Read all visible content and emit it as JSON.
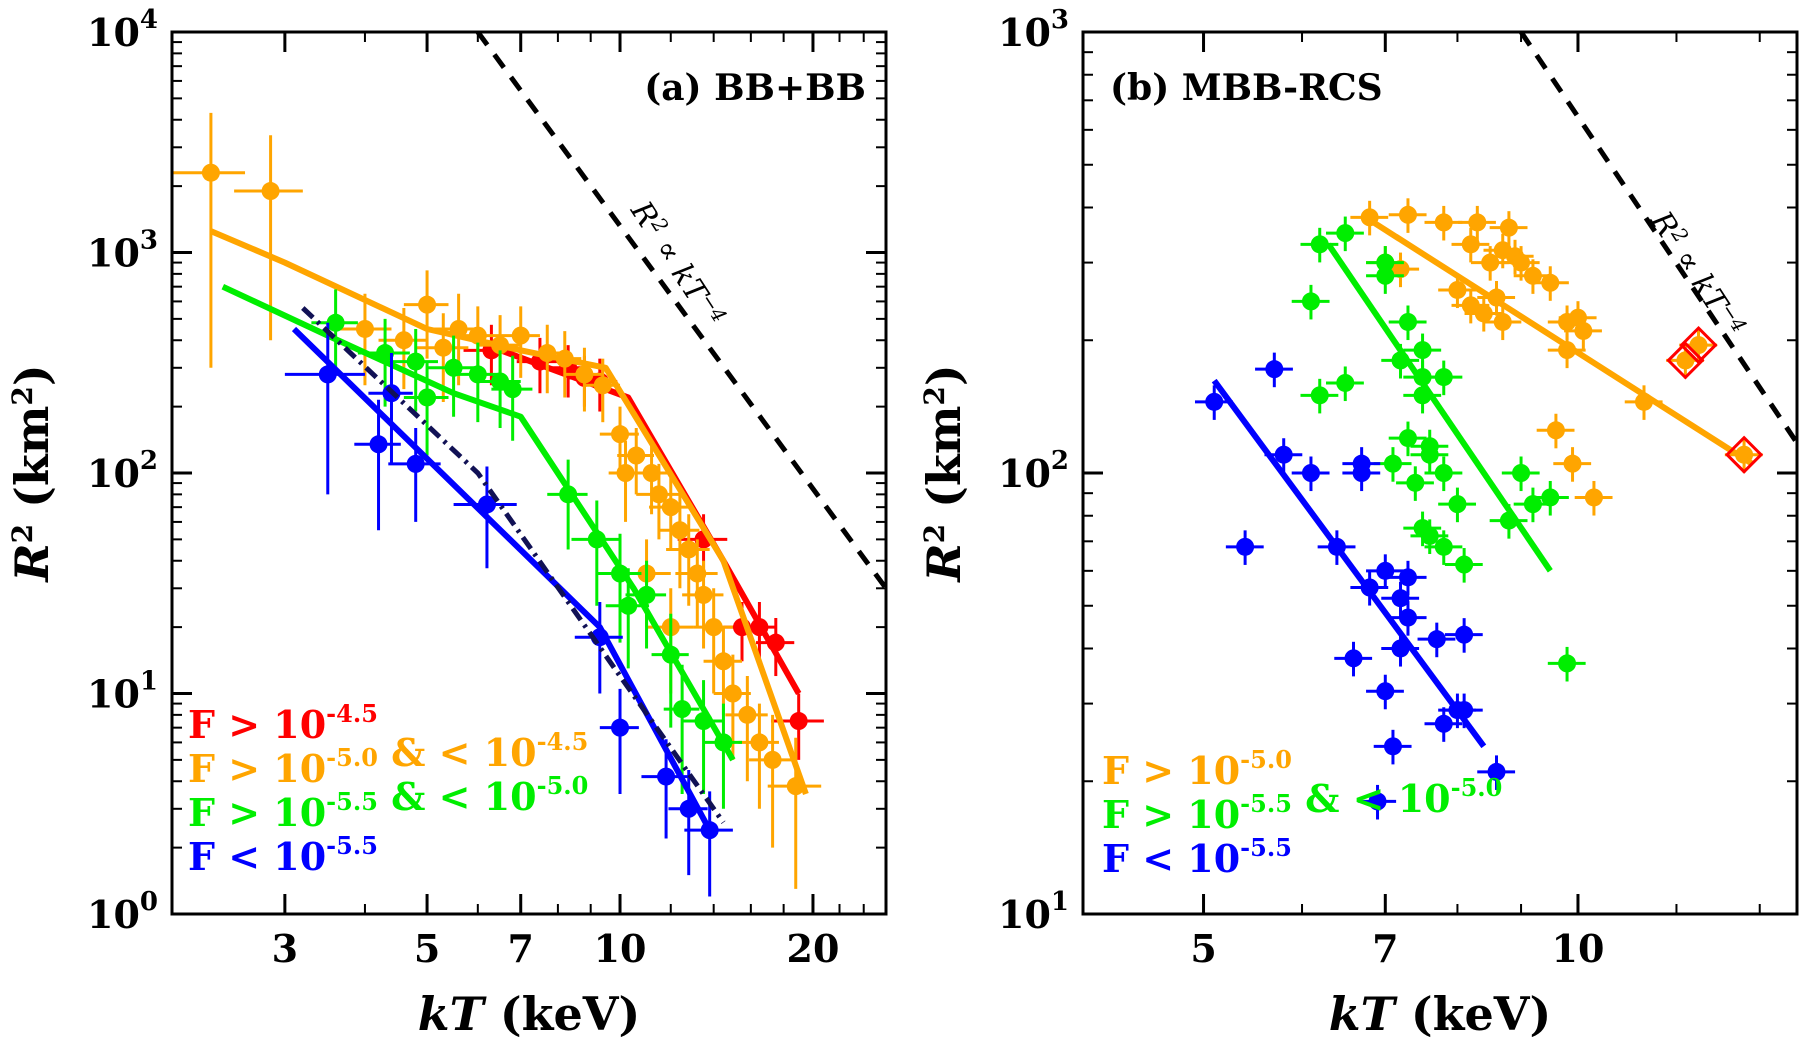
{
  "chart_data": [
    {
      "type": "scatter",
      "panel_label": "(a) BB+BB",
      "xlabel": "kT (keV)",
      "ylabel": "R² (km²)",
      "xscale": "log",
      "yscale": "log",
      "xlim": [
        2.0,
        26.0
      ],
      "ylim": [
        1.0,
        10000
      ],
      "xticks": [
        {
          "value": 3,
          "label": "3"
        },
        {
          "value": 5,
          "label": "5"
        },
        {
          "value": 7,
          "label": "7"
        },
        {
          "value": 10,
          "label": "10"
        },
        {
          "value": 20,
          "label": "20"
        }
      ],
      "yticks": [
        {
          "value": 1,
          "base": "10",
          "exp": "0"
        },
        {
          "value": 10,
          "base": "10",
          "exp": "1"
        },
        {
          "value": 100,
          "base": "10",
          "exp": "2"
        },
        {
          "value": 1000,
          "base": "10",
          "exp": "3"
        },
        {
          "value": 10000,
          "base": "10",
          "exp": "4"
        }
      ],
      "annotation": {
        "text": "R² ∝ kT⁻⁴",
        "line": [
          [
            6,
            10000
          ],
          [
            26,
            30
          ]
        ]
      },
      "legend_position": "bottom-left",
      "legend": [
        {
          "color": "#ff0000",
          "parts": [
            {
              "t": "F > 10",
              "sup": "-4.5"
            }
          ]
        },
        {
          "color": "#ffa500",
          "parts": [
            {
              "t": "F > 10",
              "sup": "-5.0"
            },
            {
              "t": " & < 10",
              "sup": "-4.5"
            }
          ]
        },
        {
          "color": "#00ee00",
          "parts": [
            {
              "t": "F > 10",
              "sup": "-5.5"
            },
            {
              "t": " & < 10",
              "sup": "-5.0"
            }
          ]
        },
        {
          "color": "#0000ff",
          "parts": [
            {
              "t": "F < 10",
              "sup": "-5.5"
            }
          ]
        }
      ],
      "series": [
        {
          "color": "#ff0000",
          "points": [
            [
              6.3,
              360,
              0.6,
              110
            ],
            [
              7.5,
              320,
              0.6,
              90
            ],
            [
              8.3,
              300,
              0.6,
              80
            ],
            [
              8.8,
              270,
              0.5,
              70
            ],
            [
              9.3,
              260,
              0.6,
              70
            ],
            [
              13.5,
              50,
              1.2,
              15
            ],
            [
              15.5,
              20,
              1.0,
              6
            ],
            [
              16.5,
              20,
              1.0,
              6
            ],
            [
              17.5,
              17,
              1.2,
              5
            ],
            [
              19.0,
              7.5,
              1.8,
              2.5
            ]
          ],
          "fit": [
            [
              6.2,
              380
            ],
            [
              10.3,
              220
            ],
            [
              14.5,
              40
            ],
            [
              19.0,
              10
            ]
          ]
        },
        {
          "color": "#ffa500",
          "points": [
            [
              2.3,
              2300,
              0.3,
              2000
            ],
            [
              2.85,
              1900,
              0.35,
              1500
            ],
            [
              4.0,
              450,
              0.4,
              200
            ],
            [
              4.6,
              400,
              0.4,
              160
            ],
            [
              5.0,
              580,
              0.4,
              250
            ],
            [
              5.3,
              370,
              0.5,
              160
            ],
            [
              5.6,
              450,
              0.5,
              200
            ],
            [
              6.0,
              420,
              0.5,
              150
            ],
            [
              6.5,
              380,
              0.5,
              140
            ],
            [
              7.0,
              420,
              0.5,
              150
            ],
            [
              7.7,
              350,
              0.5,
              120
            ],
            [
              8.2,
              330,
              0.5,
              110
            ],
            [
              8.8,
              280,
              0.6,
              90
            ],
            [
              9.4,
              250,
              0.6,
              80
            ],
            [
              10.0,
              150,
              0.7,
              50
            ],
            [
              10.6,
              120,
              0.7,
              40
            ],
            [
              11.2,
              100,
              0.8,
              35
            ],
            [
              10.2,
              100,
              0.6,
              40
            ],
            [
              11.5,
              80,
              0.9,
              30
            ],
            [
              12.0,
              70,
              0.9,
              25
            ],
            [
              12.4,
              55,
              0.9,
              25
            ],
            [
              12.8,
              45,
              1.0,
              20
            ],
            [
              13.2,
              35,
              1.0,
              15
            ],
            [
              11.0,
              35,
              1.0,
              15
            ],
            [
              12.0,
              20,
              1.0,
              10
            ],
            [
              13.5,
              28,
              1.0,
              12
            ],
            [
              14.0,
              20,
              1.0,
              10
            ],
            [
              14.5,
              14,
              1.0,
              6
            ],
            [
              15.0,
              10,
              1.0,
              5
            ],
            [
              15.8,
              8,
              1.2,
              4
            ],
            [
              16.5,
              6,
              1.2,
              3
            ],
            [
              17.3,
              5,
              1.4,
              3
            ],
            [
              18.8,
              3.8,
              1.8,
              2.5
            ]
          ],
          "fit": [
            [
              2.3,
              1250
            ],
            [
              3.0,
              900
            ],
            [
              5.0,
              450
            ],
            [
              7.0,
              360
            ],
            [
              9.5,
              300
            ],
            [
              14.5,
              40
            ],
            [
              19.5,
              3.5
            ]
          ]
        },
        {
          "color": "#00ee00",
          "points": [
            [
              3.6,
              480,
              0.3,
              200
            ],
            [
              4.3,
              350,
              0.4,
              150
            ],
            [
              4.8,
              320,
              0.4,
              130
            ],
            [
              5.0,
              220,
              0.4,
              100
            ],
            [
              5.5,
              300,
              0.5,
              120
            ],
            [
              6.0,
              280,
              0.5,
              110
            ],
            [
              6.5,
              260,
              0.5,
              100
            ],
            [
              6.8,
              240,
              0.5,
              100
            ],
            [
              8.3,
              80,
              0.6,
              35
            ],
            [
              9.2,
              50,
              0.8,
              25
            ],
            [
              10.0,
              35,
              0.8,
              18
            ],
            [
              10.3,
              25,
              0.8,
              12
            ],
            [
              11.0,
              28,
              0.8,
              12
            ],
            [
              12.0,
              15,
              0.8,
              8
            ],
            [
              12.5,
              8.5,
              0.8,
              5
            ],
            [
              13.5,
              7.5,
              1.0,
              4
            ],
            [
              14.5,
              6,
              1.0,
              3
            ]
          ],
          "fit": [
            [
              2.4,
              700
            ],
            [
              3.5,
              420
            ],
            [
              5.5,
              230
            ],
            [
              7.0,
              180
            ],
            [
              10.5,
              30
            ],
            [
              15.0,
              5
            ]
          ]
        },
        {
          "color": "#0000ff",
          "points": [
            [
              3.5,
              280,
              0.5,
              200
            ],
            [
              4.2,
              135,
              0.35,
              80
            ],
            [
              4.4,
              230,
              0.35,
              120
            ],
            [
              4.8,
              110,
              0.45,
              50
            ],
            [
              6.2,
              72,
              0.7,
              35
            ],
            [
              9.3,
              18,
              0.8,
              8
            ],
            [
              10.0,
              7,
              0.7,
              3.5
            ],
            [
              11.8,
              4.2,
              1.0,
              2
            ],
            [
              12.8,
              3,
              0.9,
              1.5
            ],
            [
              13.8,
              2.4,
              1.2,
              1.2
            ]
          ],
          "fit": [
            [
              3.1,
              450
            ],
            [
              9.3,
              20
            ],
            [
              13.8,
              2.4
            ]
          ],
          "dashed_fit": [
            [
              3.2,
              560
            ],
            [
              6.0,
              100
            ],
            [
              10.0,
              12
            ],
            [
              14.5,
              2.6
            ]
          ]
        }
      ]
    },
    {
      "type": "scatter",
      "panel_label": "(b) MBB-RCS",
      "xlabel": "kT (keV)",
      "ylabel": "R² (km²)",
      "xscale": "log",
      "yscale": "log",
      "xlim": [
        4.0,
        15.0
      ],
      "ylim": [
        10,
        1000
      ],
      "xticks": [
        {
          "value": 5,
          "label": "5"
        },
        {
          "value": 7,
          "label": "7"
        },
        {
          "value": 10,
          "label": "10"
        }
      ],
      "yticks": [
        {
          "value": 10,
          "base": "10",
          "exp": "1"
        },
        {
          "value": 100,
          "base": "10",
          "exp": "2"
        },
        {
          "value": 1000,
          "base": "10",
          "exp": "3"
        }
      ],
      "annotation": {
        "text": "R² ∝ kT⁻⁴",
        "line": [
          [
            9.0,
            1000
          ],
          [
            15.0,
            117
          ]
        ]
      },
      "legend_position": "bottom-left",
      "legend": [
        {
          "color": "#ffa500",
          "parts": [
            {
              "t": "F > 10",
              "sup": "-5.0"
            }
          ]
        },
        {
          "color": "#00ee00",
          "parts": [
            {
              "t": "F > 10",
              "sup": "-5.5"
            },
            {
              "t": " & < 10",
              "sup": "-5.0"
            }
          ]
        },
        {
          "color": "#0000ff",
          "parts": [
            {
              "t": "F < 10",
              "sup": "-5.5"
            }
          ]
        }
      ],
      "highlighted": [
        [
          12.2,
          180
        ],
        [
          12.5,
          195
        ],
        [
          13.6,
          110
        ]
      ],
      "series": [
        {
          "color": "#ffa500",
          "points": [
            [
              6.8,
              380
            ],
            [
              7.3,
              385
            ],
            [
              7.8,
              370
            ],
            [
              8.3,
              370
            ],
            [
              8.8,
              360
            ],
            [
              7.0,
              300
            ],
            [
              7.2,
              290
            ],
            [
              8.2,
              330
            ],
            [
              8.5,
              300
            ],
            [
              8.7,
              320
            ],
            [
              8.9,
              310
            ],
            [
              9.0,
              300
            ],
            [
              8.0,
              260
            ],
            [
              8.2,
              240
            ],
            [
              8.4,
              230
            ],
            [
              8.6,
              250
            ],
            [
              8.7,
              220
            ],
            [
              9.2,
              280
            ],
            [
              9.5,
              270
            ],
            [
              9.8,
              220
            ],
            [
              10.0,
              225
            ],
            [
              10.1,
              210
            ],
            [
              9.8,
              190
            ],
            [
              9.9,
              105
            ],
            [
              9.6,
              125
            ],
            [
              10.3,
              88
            ],
            [
              11.3,
              145
            ],
            [
              12.2,
              180
            ],
            [
              12.5,
              195
            ],
            [
              13.6,
              110
            ]
          ],
          "fit": [
            [
              6.8,
              375
            ],
            [
              13.8,
              105
            ]
          ]
        },
        {
          "color": "#00ee00",
          "points": [
            [
              6.2,
              330
            ],
            [
              6.5,
              350
            ],
            [
              6.1,
              245
            ],
            [
              6.2,
              150
            ],
            [
              6.5,
              160
            ],
            [
              7.0,
              300
            ],
            [
              7.0,
              280
            ],
            [
              7.3,
              220
            ],
            [
              7.2,
              180
            ],
            [
              7.5,
              190
            ],
            [
              7.5,
              165
            ],
            [
              7.5,
              150
            ],
            [
              7.8,
              165
            ],
            [
              7.1,
              105
            ],
            [
              7.3,
              120
            ],
            [
              7.4,
              95
            ],
            [
              7.6,
              110
            ],
            [
              7.6,
              115
            ],
            [
              7.8,
              100
            ],
            [
              7.5,
              75
            ],
            [
              7.6,
              72
            ],
            [
              7.8,
              68
            ],
            [
              8.0,
              85
            ],
            [
              8.1,
              62
            ],
            [
              8.8,
              78
            ],
            [
              9.0,
              100
            ],
            [
              9.2,
              85
            ],
            [
              9.5,
              88
            ],
            [
              9.8,
              37
            ]
          ],
          "fit": [
            [
              6.3,
              330
            ],
            [
              9.5,
              60
            ]
          ]
        },
        {
          "color": "#0000ff",
          "points": [
            [
              5.1,
              145
            ],
            [
              5.4,
              68
            ],
            [
              5.7,
              172
            ],
            [
              5.8,
              110
            ],
            [
              6.1,
              100
            ],
            [
              6.4,
              68
            ],
            [
              6.7,
              105
            ],
            [
              6.7,
              100
            ],
            [
              6.8,
              55
            ],
            [
              6.6,
              38
            ],
            [
              7.0,
              60
            ],
            [
              7.0,
              32
            ],
            [
              7.1,
              24
            ],
            [
              7.2,
              40
            ],
            [
              7.2,
              52
            ],
            [
              7.3,
              58
            ],
            [
              7.3,
              47
            ],
            [
              7.7,
              42
            ],
            [
              7.8,
              27
            ],
            [
              8.1,
              43
            ],
            [
              8.0,
              29
            ],
            [
              8.1,
              29
            ],
            [
              8.6,
              21
            ],
            [
              6.9,
              18
            ]
          ],
          "fit": [
            [
              5.1,
              162
            ],
            [
              8.4,
              24
            ]
          ]
        }
      ]
    }
  ]
}
